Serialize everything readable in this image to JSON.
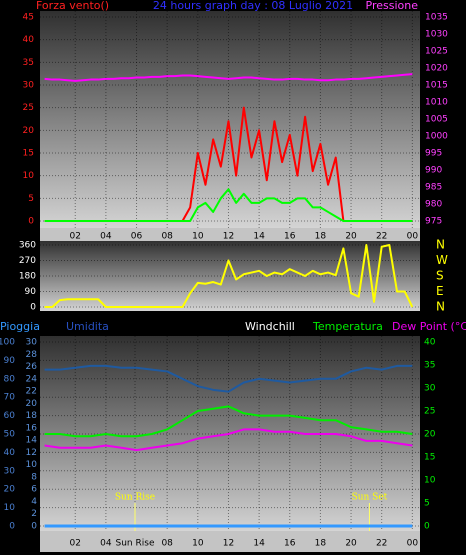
{
  "chart_data": [
    {
      "type": "line",
      "left_label": "Forza vento()",
      "title": "24 hours graph day : 08 Luglio 2021",
      "right_label": "Pressione",
      "x": [
        0,
        0.5,
        1,
        1.5,
        2,
        2.5,
        3,
        3.5,
        4,
        4.5,
        5,
        5.5,
        6,
        6.5,
        7,
        7.5,
        8,
        8.5,
        9,
        9.5,
        10,
        10.5,
        11,
        11.5,
        12,
        12.5,
        13,
        13.5,
        14,
        14.5,
        15,
        15.5,
        16,
        16.5,
        17,
        17.5,
        18,
        18.5,
        19,
        19.5,
        20,
        20.5,
        21,
        21.5,
        22,
        22.5,
        23,
        23.5,
        24
      ],
      "xlim": [
        -0.3,
        24.5
      ],
      "xticks": [
        {
          "value": 2,
          "label": "02"
        },
        {
          "value": 4,
          "label": "04"
        },
        {
          "value": 6,
          "label": "06"
        },
        {
          "value": 8,
          "label": "08"
        },
        10,
        12,
        14,
        16,
        18,
        20,
        22,
        {
          "value": 24,
          "label": "00"
        }
      ],
      "ylim": [
        0,
        45
      ],
      "yticks": [
        0,
        5,
        10,
        15,
        20,
        25,
        30,
        35,
        40,
        45
      ],
      "y2lim": [
        975,
        1035
      ],
      "y2ticks": [
        975,
        980,
        985,
        990,
        995,
        1000,
        1005,
        1010,
        1015,
        1020,
        1025,
        1030,
        1035
      ],
      "grid": true,
      "series": [
        {
          "color": "#ff00ff",
          "axis": "y2",
          "values": [
            1016.8,
            1016.6,
            1016.6,
            1016.4,
            1016.2,
            1016.4,
            1016.6,
            1016.6,
            1016.8,
            1016.8,
            1017,
            1017,
            1017.2,
            1017.2,
            1017.4,
            1017.4,
            1017.6,
            1017.6,
            1017.8,
            1017.8,
            1017.6,
            1017.4,
            1017.2,
            1017,
            1016.8,
            1017,
            1017.2,
            1017.2,
            1017,
            1016.8,
            1016.6,
            1016.6,
            1016.8,
            1016.8,
            1016.6,
            1016.6,
            1016.4,
            1016.4,
            1016.6,
            1016.6,
            1016.8,
            1016.8,
            1017,
            1017.2,
            1017.4,
            1017.6,
            1017.8,
            1018,
            1018.2
          ]
        },
        {
          "color": "#ff0000",
          "values": [
            0,
            0,
            0,
            0,
            0,
            0,
            0,
            0,
            0,
            0,
            0,
            0,
            0,
            0,
            0,
            0,
            0,
            0,
            0,
            3,
            15,
            8,
            18,
            12,
            22,
            10,
            25,
            14,
            20,
            9,
            22,
            13,
            19,
            10,
            23,
            11,
            17,
            8,
            14,
            0,
            0,
            0,
            0,
            0,
            0,
            0,
            0,
            0,
            0
          ]
        },
        {
          "color": "#00ff00",
          "values": [
            0,
            0,
            0,
            0,
            0,
            0,
            0,
            0,
            0,
            0,
            0,
            0,
            0,
            0,
            0,
            0,
            0,
            0,
            0,
            0,
            3,
            4,
            2,
            5,
            7,
            4,
            6,
            4,
            4,
            5,
            5,
            4,
            4,
            5,
            5,
            3,
            3,
            2,
            1,
            0,
            0,
            0,
            0,
            0,
            0,
            0,
            0,
            0,
            0
          ]
        }
      ]
    },
    {
      "type": "line",
      "x": [
        0,
        0.5,
        1,
        1.5,
        2,
        2.5,
        3,
        3.5,
        4,
        4.5,
        5,
        5.5,
        6,
        6.5,
        7,
        7.5,
        8,
        8.5,
        9,
        9.5,
        10,
        10.5,
        11,
        11.5,
        12,
        12.5,
        13,
        13.5,
        14,
        14.5,
        15,
        15.5,
        16,
        16.5,
        17,
        17.5,
        18,
        18.5,
        19,
        19.5,
        20,
        20.5,
        21,
        21.5,
        22,
        22.5,
        23,
        23.5,
        24
      ],
      "xlim": [
        -0.3,
        24.5
      ],
      "ylim": [
        0,
        360
      ],
      "yticks": [
        0,
        90,
        180,
        270,
        360
      ],
      "y2lim": [
        0,
        360
      ],
      "y2ticks": [
        {
          "value": 360,
          "label": "N"
        },
        {
          "value": 270,
          "label": "W"
        },
        {
          "value": 180,
          "label": "S"
        },
        {
          "value": 90,
          "label": "E"
        },
        {
          "value": 0,
          "label": "N"
        }
      ],
      "grid": true,
      "series": [
        {
          "color": "#ffff00",
          "values": [
            0,
            0,
            40,
            45,
            45,
            45,
            45,
            45,
            0,
            0,
            0,
            0,
            0,
            0,
            0,
            0,
            0,
            0,
            0,
            80,
            140,
            135,
            145,
            130,
            270,
            160,
            190,
            200,
            210,
            180,
            200,
            190,
            220,
            200,
            180,
            210,
            190,
            200,
            185,
            340,
            80,
            60,
            360,
            30,
            350,
            360,
            90,
            90,
            0
          ]
        }
      ]
    },
    {
      "type": "line",
      "windchill_label": "Windchill",
      "x": [
        0,
        1,
        2,
        3,
        4,
        5,
        6,
        7,
        8,
        9,
        10,
        11,
        12,
        13,
        14,
        15,
        16,
        17,
        18,
        19,
        20,
        21,
        22,
        23,
        24
      ],
      "xlim": [
        -0.3,
        24.5
      ],
      "xticks": [
        {
          "value": 2,
          "label": "02"
        },
        {
          "value": 4,
          "label": "04"
        },
        {
          "value": 5.9,
          "label": "Sun Rise"
        },
        {
          "value": 8,
          "label": "08"
        },
        10,
        12,
        14,
        16,
        18,
        20,
        22,
        {
          "value": 24,
          "label": "00"
        }
      ],
      "ylim": [
        0,
        100
      ],
      "yticks": [
        0,
        10,
        20,
        30,
        40,
        50,
        60,
        70,
        80,
        90,
        100
      ],
      "y3lim": [
        0,
        30
      ],
      "y3ticks": [
        0,
        2,
        4,
        6,
        8,
        10,
        12,
        14,
        16,
        18,
        20,
        22,
        24,
        26,
        28,
        30
      ],
      "y2lim": [
        0,
        40
      ],
      "y2ticks": [
        0,
        5,
        10,
        15,
        20,
        25,
        30,
        35,
        40
      ],
      "grid": true,
      "annotations": [
        {
          "text": "Sun Rise",
          "x": 5.9
        },
        {
          "text": "Sun Set",
          "x": 21.2
        }
      ],
      "series": [
        {
          "name": "Pioggia",
          "color": "#3399ff",
          "axis": "y3",
          "values": [
            0,
            0,
            0,
            0,
            0,
            0,
            0,
            0,
            0,
            0,
            0,
            0,
            0,
            0,
            0,
            0,
            0,
            0,
            0,
            0,
            0,
            0,
            0,
            0,
            0
          ]
        },
        {
          "name": "Umidita",
          "color": "#1f5aa0",
          "values": [
            85,
            85,
            86,
            87,
            87,
            86,
            86,
            85,
            84,
            80,
            76,
            74,
            73,
            78,
            80,
            79,
            78,
            79,
            80,
            80,
            84,
            86,
            85,
            87,
            87
          ]
        },
        {
          "name": "Temperatura",
          "color": "#00ee00",
          "axis": "y2",
          "values": [
            20,
            20,
            19.5,
            19.5,
            20,
            19.5,
            19.5,
            20,
            21,
            23,
            25,
            25.5,
            26,
            24.5,
            24,
            24,
            24,
            23.5,
            23,
            23,
            21.5,
            21,
            20.5,
            20.5,
            20
          ]
        },
        {
          "name": "Dew Point (°C)",
          "color": "#ee00ee",
          "axis": "y2",
          "values": [
            17.5,
            17,
            17,
            17,
            17.5,
            17,
            16.5,
            17,
            17.5,
            18,
            19,
            19.5,
            20,
            21,
            21,
            20.5,
            20.5,
            20,
            20,
            20,
            19.5,
            18.5,
            18.5,
            18,
            17.5
          ]
        }
      ]
    }
  ]
}
